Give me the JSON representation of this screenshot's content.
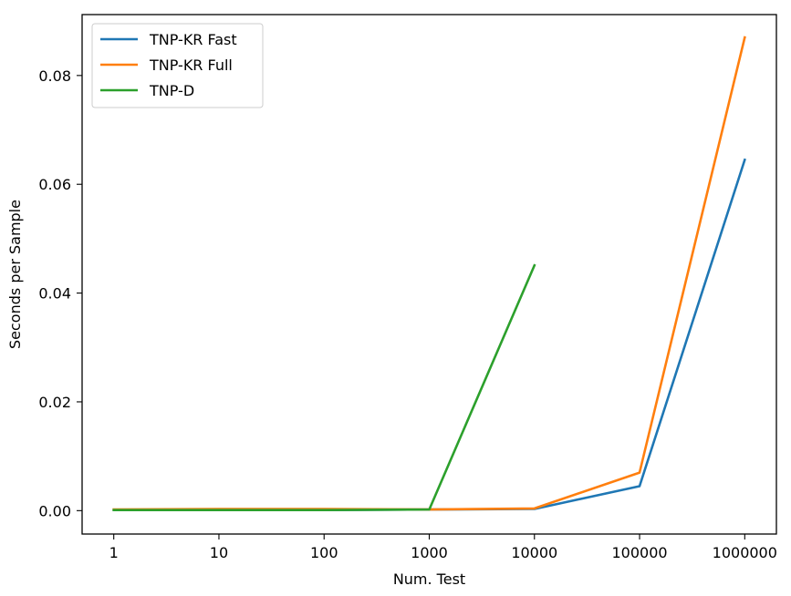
{
  "chart_data": {
    "type": "line",
    "xlabel": "Num. Test",
    "ylabel": "Seconds per Sample",
    "x_scale": "log10",
    "x_ticks": [
      "1",
      "10",
      "100",
      "1000",
      "10000",
      "100000",
      "1000000"
    ],
    "x_tick_values": [
      1,
      10,
      100,
      1000,
      10000,
      100000,
      1000000
    ],
    "xlim": [
      0.5,
      2000000
    ],
    "y_ticks": [
      "0.00",
      "0.02",
      "0.04",
      "0.06",
      "0.08"
    ],
    "y_tick_values": [
      0.0,
      0.02,
      0.04,
      0.06,
      0.08
    ],
    "ylim": [
      -0.0043,
      0.0912
    ],
    "grid": false,
    "legend_position": "top-left",
    "series": [
      {
        "name": "TNP-KR Fast",
        "color": "#1f77b4",
        "x": [
          1,
          10,
          100,
          1000,
          10000,
          100000,
          1000000
        ],
        "y": [
          0.0001,
          0.0001,
          0.0001,
          0.0002,
          0.0003,
          0.0045,
          0.0645
        ]
      },
      {
        "name": "TNP-KR Full",
        "color": "#ff7f0e",
        "x": [
          1,
          10,
          100,
          1000,
          10000,
          100000,
          1000000
        ],
        "y": [
          0.0002,
          0.0003,
          0.0003,
          0.0002,
          0.0004,
          0.007,
          0.087
        ]
      },
      {
        "name": "TNP-D",
        "color": "#2ca02c",
        "x": [
          1,
          10,
          100,
          1000,
          10000
        ],
        "y": [
          0.0001,
          0.0001,
          0.0001,
          0.0002,
          0.0451
        ]
      }
    ]
  }
}
